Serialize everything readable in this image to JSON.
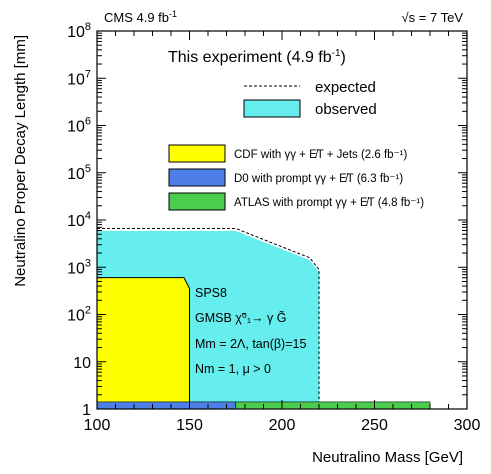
{
  "chart_data": {
    "type": "area",
    "header_left": "CMS 4.9 fb",
    "header_left_sup": "-1",
    "header_right": "s = 7 TeV",
    "header_right_sqrt": "√",
    "xlabel": "Neutralino Mass [GeV]",
    "ylabel": "Neutralino Proper Decay Length [mm]",
    "xlim": [
      100,
      300
    ],
    "ylim_log10": [
      0,
      8
    ],
    "x_ticks": [
      "100",
      "150",
      "200",
      "250",
      "300"
    ],
    "x_tick_values": [
      100,
      150,
      200,
      250,
      300
    ],
    "y_ticks": [
      {
        "base": "1",
        "exp": "",
        "value": 0
      },
      {
        "base": "10",
        "exp": "",
        "value": 1
      },
      {
        "base": "10",
        "exp": "2",
        "value": 2
      },
      {
        "base": "10",
        "exp": "3",
        "value": 3
      },
      {
        "base": "10",
        "exp": "4",
        "value": 4
      },
      {
        "base": "10",
        "exp": "5",
        "value": 5
      },
      {
        "base": "10",
        "exp": "6",
        "value": 6
      },
      {
        "base": "10",
        "exp": "7",
        "value": 7
      },
      {
        "base": "10",
        "exp": "8",
        "value": 8
      }
    ],
    "legend_title": "This experiment (4.9 fb",
    "legend_title_sup": "-1",
    "legend_title_end": ")",
    "legend_expected": "expected",
    "legend_observed": "observed",
    "legend2": [
      {
        "label": "CDF with γγ + E̸T + Jets (2.6 fb⁻¹)",
        "color": "#ffff00"
      },
      {
        "label": "D0 with prompt γγ + E̸T (6.3 fb⁻¹)",
        "color": "#4d7fe6"
      },
      {
        "label": "ATLAS with prompt γγ + E̸T (4.8 fb⁻¹)",
        "color": "#4ccc4c"
      }
    ],
    "annotations": [
      "SPS8",
      "GMSB χ̃⁰₁→ γ G̃",
      "Mm = 2Λ, tan(β)=15",
      "Nm = 1, μ > 0"
    ],
    "series": [
      {
        "name": "observed",
        "color": "#66eeee",
        "x": [
          100,
          150,
          175,
          215,
          220,
          220
        ],
        "log10y": [
          3.77,
          3.77,
          3.77,
          3.15,
          2.9,
          0
        ]
      },
      {
        "name": "expected",
        "style": "dashed",
        "x": [
          100,
          150,
          175,
          215,
          220,
          220
        ],
        "log10y": [
          3.82,
          3.82,
          3.82,
          3.2,
          2.95,
          0
        ]
      },
      {
        "name": "CDF",
        "color": "#ffff00",
        "x": [
          100,
          147,
          150,
          150
        ],
        "log10y": [
          2.78,
          2.78,
          2.55,
          0
        ]
      },
      {
        "name": "D0",
        "color": "#4d7fe6",
        "x": [
          100,
          175
        ],
        "log10y": [
          0.15,
          0.15
        ]
      },
      {
        "name": "ATLAS",
        "color": "#4ccc4c",
        "x": [
          175,
          280
        ],
        "log10y": [
          0.15,
          0.15
        ]
      }
    ]
  }
}
